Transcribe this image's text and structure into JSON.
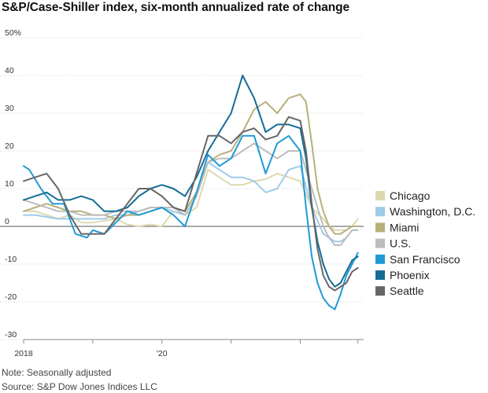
{
  "chart_data": {
    "type": "line",
    "title": "S&P/Case-Shiller index, six-month annualized rate of change",
    "note": "Note: Seasonally adjusted",
    "source": "Source: S&P Dow Jones Indices LLC",
    "ylim": [
      -30,
      50
    ],
    "yticks": [
      {
        "value": 50,
        "label": "50%"
      },
      {
        "value": 40,
        "label": "40"
      },
      {
        "value": 30,
        "label": "30"
      },
      {
        "value": 20,
        "label": "20"
      },
      {
        "value": 10,
        "label": "10"
      },
      {
        "value": 0,
        "label": "0"
      },
      {
        "value": -10,
        "label": "-10"
      },
      {
        "value": -20,
        "label": "-20"
      },
      {
        "value": -30,
        "label": "-30"
      }
    ],
    "x_start": "2018-01",
    "x_end": "2022-12",
    "xticks": [
      {
        "value": "2018-01",
        "label": "2018"
      },
      {
        "value": "2019-01",
        "label": ""
      },
      {
        "value": "2020-01",
        "label": "'20"
      },
      {
        "value": "2021-01",
        "label": ""
      },
      {
        "value": "2022-01",
        "label": ""
      },
      {
        "value": "2022-11",
        "label": ""
      }
    ],
    "grid": true,
    "legend_position": "right",
    "series": [
      {
        "name": "Chicago",
        "color": "#ddd8b0",
        "points": [
          [
            "2018-01",
            4
          ],
          [
            "2018-03",
            4
          ],
          [
            "2018-05",
            3
          ],
          [
            "2018-07",
            2
          ],
          [
            "2018-09",
            3
          ],
          [
            "2018-11",
            1
          ],
          [
            "2019-01",
            1
          ],
          [
            "2019-03",
            1.5
          ],
          [
            "2019-05",
            2
          ],
          [
            "2019-07",
            0.5
          ],
          [
            "2019-09",
            0
          ],
          [
            "2019-11",
            0.5
          ],
          [
            "2020-01",
            0
          ],
          [
            "2020-03",
            4
          ],
          [
            "2020-05",
            3
          ],
          [
            "2020-07",
            5
          ],
          [
            "2020-09",
            15
          ],
          [
            "2020-11",
            13
          ],
          [
            "2021-01",
            11
          ],
          [
            "2021-03",
            11
          ],
          [
            "2021-05",
            12
          ],
          [
            "2021-07",
            12.5
          ],
          [
            "2021-09",
            14
          ],
          [
            "2021-11",
            13
          ],
          [
            "2022-01",
            12
          ],
          [
            "2022-03",
            5
          ],
          [
            "2022-05",
            2
          ],
          [
            "2022-06",
            0
          ],
          [
            "2022-07",
            -1
          ],
          [
            "2022-08",
            -1
          ],
          [
            "2022-09",
            -1
          ],
          [
            "2022-10",
            0
          ],
          [
            "2022-11",
            2
          ]
        ]
      },
      {
        "name": "Washington, D.C.",
        "color": "#9fcbe8",
        "points": [
          [
            "2018-01",
            3
          ],
          [
            "2018-03",
            3
          ],
          [
            "2018-05",
            2.5
          ],
          [
            "2018-07",
            2
          ],
          [
            "2018-09",
            2
          ],
          [
            "2018-11",
            2
          ],
          [
            "2019-01",
            2
          ],
          [
            "2019-03",
            2
          ],
          [
            "2019-05",
            3
          ],
          [
            "2019-07",
            3
          ],
          [
            "2019-09",
            4
          ],
          [
            "2019-11",
            5
          ],
          [
            "2020-01",
            5
          ],
          [
            "2020-03",
            4
          ],
          [
            "2020-05",
            3
          ],
          [
            "2020-07",
            8
          ],
          [
            "2020-09",
            17
          ],
          [
            "2020-11",
            15
          ],
          [
            "2021-01",
            13
          ],
          [
            "2021-03",
            13
          ],
          [
            "2021-05",
            12
          ],
          [
            "2021-07",
            9
          ],
          [
            "2021-09",
            10
          ],
          [
            "2021-11",
            15
          ],
          [
            "2022-01",
            16
          ],
          [
            "2022-03",
            5
          ],
          [
            "2022-05",
            -2
          ],
          [
            "2022-06",
            -3
          ],
          [
            "2022-07",
            -4
          ],
          [
            "2022-08",
            -4
          ],
          [
            "2022-09",
            -3
          ],
          [
            "2022-10",
            -1
          ],
          [
            "2022-11",
            -1
          ]
        ]
      },
      {
        "name": "Miami",
        "color": "#b8b07a",
        "points": [
          [
            "2018-01",
            4
          ],
          [
            "2018-03",
            5
          ],
          [
            "2018-05",
            6
          ],
          [
            "2018-07",
            5
          ],
          [
            "2018-09",
            4
          ],
          [
            "2018-11",
            4
          ],
          [
            "2019-01",
            3
          ],
          [
            "2019-03",
            3
          ],
          [
            "2019-05",
            2
          ],
          [
            "2019-07",
            3
          ],
          [
            "2019-09",
            3
          ],
          [
            "2019-11",
            4
          ],
          [
            "2020-01",
            5
          ],
          [
            "2020-03",
            5
          ],
          [
            "2020-05",
            4
          ],
          [
            "2020-07",
            9
          ],
          [
            "2020-09",
            17
          ],
          [
            "2020-11",
            19
          ],
          [
            "2021-01",
            20
          ],
          [
            "2021-03",
            25
          ],
          [
            "2021-05",
            31
          ],
          [
            "2021-07",
            33
          ],
          [
            "2021-09",
            30
          ],
          [
            "2021-11",
            34
          ],
          [
            "2022-01",
            35
          ],
          [
            "2022-02",
            33
          ],
          [
            "2022-03",
            22
          ],
          [
            "2022-04",
            10
          ],
          [
            "2022-05",
            4
          ],
          [
            "2022-06",
            0
          ],
          [
            "2022-07",
            -2
          ],
          [
            "2022-08",
            -2
          ],
          [
            "2022-09",
            -1
          ],
          [
            "2022-10",
            0
          ],
          [
            "2022-11",
            0
          ]
        ]
      },
      {
        "name": "U.S.",
        "color": "#bdbdbd",
        "points": [
          [
            "2018-01",
            7
          ],
          [
            "2018-03",
            6
          ],
          [
            "2018-05",
            5
          ],
          [
            "2018-07",
            4
          ],
          [
            "2018-09",
            4
          ],
          [
            "2018-11",
            3
          ],
          [
            "2019-01",
            3
          ],
          [
            "2019-03",
            3
          ],
          [
            "2019-05",
            4
          ],
          [
            "2019-07",
            4
          ],
          [
            "2019-09",
            4
          ],
          [
            "2019-11",
            5
          ],
          [
            "2020-01",
            5
          ],
          [
            "2020-03",
            5
          ],
          [
            "2020-05",
            3
          ],
          [
            "2020-07",
            8
          ],
          [
            "2020-09",
            17
          ],
          [
            "2020-11",
            18
          ],
          [
            "2021-01",
            18
          ],
          [
            "2021-03",
            20
          ],
          [
            "2021-05",
            22
          ],
          [
            "2021-07",
            20
          ],
          [
            "2021-09",
            18
          ],
          [
            "2021-11",
            20
          ],
          [
            "2022-01",
            20
          ],
          [
            "2022-03",
            10
          ],
          [
            "2022-05",
            0
          ],
          [
            "2022-06",
            -3
          ],
          [
            "2022-07",
            -5
          ],
          [
            "2022-08",
            -5
          ],
          [
            "2022-09",
            -3
          ],
          [
            "2022-10",
            -1
          ],
          [
            "2022-11",
            -1
          ]
        ]
      },
      {
        "name": "San Francisco",
        "color": "#1f9ad6",
        "points": [
          [
            "2018-01",
            16
          ],
          [
            "2018-02",
            15
          ],
          [
            "2018-04",
            10
          ],
          [
            "2018-06",
            6
          ],
          [
            "2018-08",
            6
          ],
          [
            "2018-10",
            -2
          ],
          [
            "2018-12",
            -3
          ],
          [
            "2019-01",
            -1
          ],
          [
            "2019-03",
            -2
          ],
          [
            "2019-05",
            1
          ],
          [
            "2019-07",
            4
          ],
          [
            "2019-09",
            3
          ],
          [
            "2019-11",
            4
          ],
          [
            "2020-01",
            5
          ],
          [
            "2020-03",
            3
          ],
          [
            "2020-05",
            0
          ],
          [
            "2020-07",
            9
          ],
          [
            "2020-09",
            19
          ],
          [
            "2020-11",
            16
          ],
          [
            "2021-01",
            18
          ],
          [
            "2021-03",
            24
          ],
          [
            "2021-05",
            24
          ],
          [
            "2021-07",
            14
          ],
          [
            "2021-09",
            22
          ],
          [
            "2021-11",
            24
          ],
          [
            "2022-01",
            20
          ],
          [
            "2022-02",
            5
          ],
          [
            "2022-03",
            -8
          ],
          [
            "2022-04",
            -15
          ],
          [
            "2022-05",
            -19
          ],
          [
            "2022-06",
            -21
          ],
          [
            "2022-07",
            -22
          ],
          [
            "2022-08",
            -18
          ],
          [
            "2022-09",
            -13
          ],
          [
            "2022-10",
            -10
          ],
          [
            "2022-11",
            -7
          ]
        ]
      },
      {
        "name": "Phoenix",
        "color": "#146c95",
        "points": [
          [
            "2018-01",
            7
          ],
          [
            "2018-03",
            8
          ],
          [
            "2018-05",
            9
          ],
          [
            "2018-07",
            7
          ],
          [
            "2018-09",
            7
          ],
          [
            "2018-11",
            8
          ],
          [
            "2019-01",
            7
          ],
          [
            "2019-03",
            4
          ],
          [
            "2019-05",
            4
          ],
          [
            "2019-07",
            5
          ],
          [
            "2019-09",
            8
          ],
          [
            "2019-11",
            10
          ],
          [
            "2020-01",
            11
          ],
          [
            "2020-03",
            10
          ],
          [
            "2020-05",
            8
          ],
          [
            "2020-07",
            13
          ],
          [
            "2020-09",
            20
          ],
          [
            "2020-11",
            25
          ],
          [
            "2021-01",
            30
          ],
          [
            "2021-03",
            40
          ],
          [
            "2021-05",
            34
          ],
          [
            "2021-07",
            25
          ],
          [
            "2021-09",
            27
          ],
          [
            "2021-11",
            27
          ],
          [
            "2022-01",
            26
          ],
          [
            "2022-02",
            18
          ],
          [
            "2022-03",
            5
          ],
          [
            "2022-04",
            -4
          ],
          [
            "2022-05",
            -10
          ],
          [
            "2022-06",
            -14
          ],
          [
            "2022-07",
            -16
          ],
          [
            "2022-08",
            -15
          ],
          [
            "2022-09",
            -12
          ],
          [
            "2022-10",
            -9
          ],
          [
            "2022-11",
            -8
          ]
        ]
      },
      {
        "name": "Seattle",
        "color": "#666666",
        "points": [
          [
            "2018-01",
            12
          ],
          [
            "2018-03",
            13
          ],
          [
            "2018-05",
            14
          ],
          [
            "2018-07",
            10
          ],
          [
            "2018-09",
            3
          ],
          [
            "2018-11",
            -2
          ],
          [
            "2019-01",
            -2
          ],
          [
            "2019-03",
            -2
          ],
          [
            "2019-05",
            2
          ],
          [
            "2019-07",
            6
          ],
          [
            "2019-09",
            10
          ],
          [
            "2019-11",
            10
          ],
          [
            "2020-01",
            8
          ],
          [
            "2020-03",
            5
          ],
          [
            "2020-05",
            4
          ],
          [
            "2020-07",
            14
          ],
          [
            "2020-09",
            24
          ],
          [
            "2020-11",
            24
          ],
          [
            "2021-01",
            22
          ],
          [
            "2021-03",
            25
          ],
          [
            "2021-05",
            26
          ],
          [
            "2021-07",
            23
          ],
          [
            "2021-09",
            24
          ],
          [
            "2021-11",
            29
          ],
          [
            "2022-01",
            28
          ],
          [
            "2022-02",
            20
          ],
          [
            "2022-03",
            6
          ],
          [
            "2022-04",
            -6
          ],
          [
            "2022-05",
            -13
          ],
          [
            "2022-06",
            -16
          ],
          [
            "2022-07",
            -17
          ],
          [
            "2022-08",
            -16
          ],
          [
            "2022-09",
            -15
          ],
          [
            "2022-10",
            -12
          ],
          [
            "2022-11",
            -11
          ]
        ]
      }
    ]
  }
}
